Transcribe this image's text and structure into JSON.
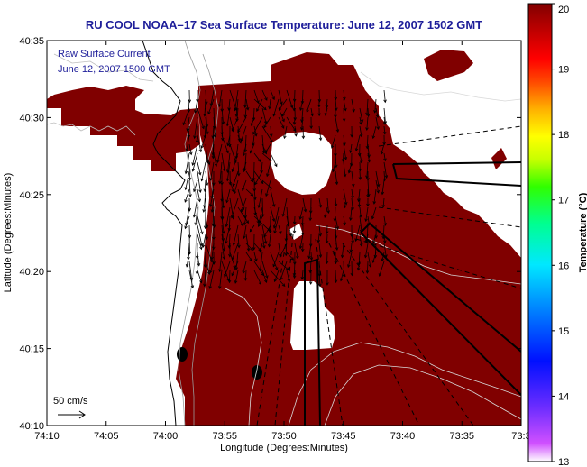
{
  "chart_data": {
    "type": "heatmap",
    "title": "RU COOL   NOAA–17  Sea Surface Temperature:  June 12, 2007 1502 GMT",
    "xlabel": "Longitude (Degrees:Minutes)",
    "ylabel": "Latitude (Degrees:Minutes)",
    "x_ticks": [
      "74:10",
      "74:05",
      "74:00",
      "73:55",
      "73:50",
      "73:45",
      "73:40",
      "73:35",
      "73:3"
    ],
    "y_ticks": [
      "40:10",
      "40:15",
      "40:20",
      "40:25",
      "40:30",
      "40:35"
    ],
    "x_range_minutes_west": [
      70,
      30
    ],
    "y_range_minutes_north": [
      10,
      35
    ],
    "colorbar": {
      "label": "Temperature (°C)",
      "ticks": [
        "13",
        "14",
        "15",
        "16",
        "17",
        "18",
        "19",
        "20"
      ],
      "range": [
        13,
        20
      ]
    },
    "annotations": {
      "current_label": "Raw Surface Current",
      "current_date": "June 12, 2007 1500 GMT",
      "scale_label": "50 cm/s"
    },
    "colors": {
      "sst_fill": "#800000",
      "title": "#1f1f9a",
      "annotation": "#1f1f9a"
    },
    "grid": false,
    "legend": "colorbar-right"
  }
}
